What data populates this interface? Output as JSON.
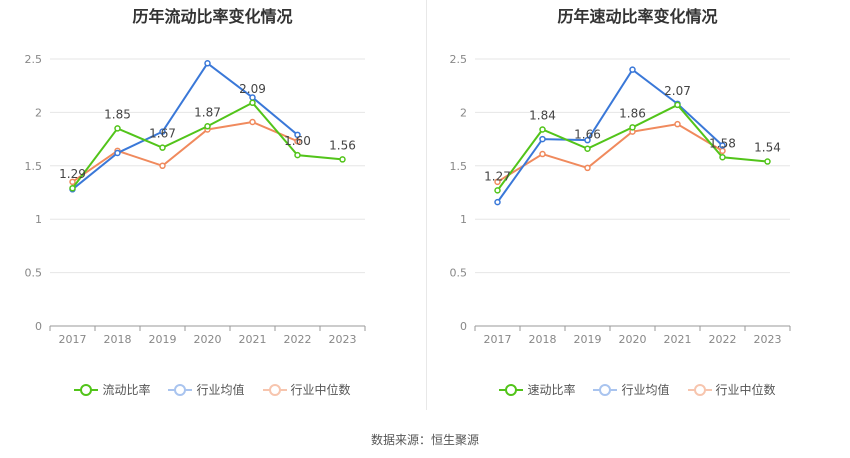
{
  "charts": [
    {
      "title": "历年流动比率变化情况",
      "legend": [
        "流动比率",
        "行业均值",
        "行业中位数"
      ]
    },
    {
      "title": "历年速动比率变化情况",
      "legend": [
        "速动比率",
        "行业均值",
        "行业中位数"
      ]
    }
  ],
  "source": "数据来源：恒生聚源",
  "colors": {
    "company": "#52c41a",
    "industry_mean": "#3a78d8",
    "industry_median": "#f08a5d"
  },
  "chart_data": [
    {
      "type": "line",
      "title": "历年流动比率变化情况",
      "categories": [
        "2017",
        "2018",
        "2019",
        "2020",
        "2021",
        "2022",
        "2023"
      ],
      "ylim": [
        0,
        2.5
      ],
      "yticks": [
        "0",
        "0.5",
        "1",
        "1.5",
        "2",
        "2.5"
      ],
      "grid": true,
      "legend_position": "bottom",
      "series": [
        {
          "name": "流动比率",
          "values": [
            1.29,
            1.85,
            1.67,
            1.87,
            2.09,
            1.6,
            1.56
          ],
          "labels": [
            "1.29",
            "1.85",
            "1.67",
            "1.87",
            "2.09",
            "1.60",
            "1.56"
          ]
        },
        {
          "name": "行业均值",
          "values": [
            1.28,
            1.62,
            1.82,
            2.46,
            2.14,
            1.79,
            null
          ]
        },
        {
          "name": "行业中位数",
          "values": [
            1.35,
            1.64,
            1.5,
            1.84,
            1.91,
            1.73,
            null
          ]
        }
      ]
    },
    {
      "type": "line",
      "title": "历年速动比率变化情况",
      "categories": [
        "2017",
        "2018",
        "2019",
        "2020",
        "2021",
        "2022",
        "2023"
      ],
      "ylim": [
        0,
        2.5
      ],
      "yticks": [
        "0",
        "0.5",
        "1",
        "1.5",
        "2",
        "2.5"
      ],
      "grid": true,
      "legend_position": "bottom",
      "series": [
        {
          "name": "速动比率",
          "values": [
            1.27,
            1.84,
            1.66,
            1.86,
            2.07,
            1.58,
            1.54
          ],
          "labels": [
            "1.27",
            "1.84",
            "1.66",
            "1.86",
            "2.07",
            "1.58",
            "1.54"
          ]
        },
        {
          "name": "行业均值",
          "values": [
            1.16,
            1.75,
            1.74,
            2.4,
            2.08,
            1.69,
            null
          ]
        },
        {
          "name": "行业中位数",
          "values": [
            1.35,
            1.61,
            1.48,
            1.82,
            1.89,
            1.64,
            null
          ]
        }
      ]
    }
  ]
}
